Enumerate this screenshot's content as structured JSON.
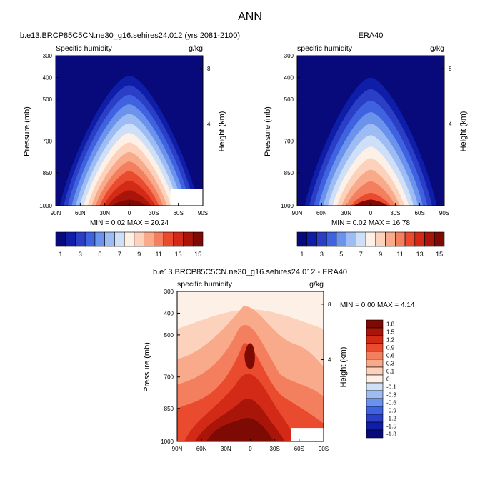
{
  "page_title": "ANN",
  "colors": {
    "sequential": [
      "#080a7c",
      "#0f1ea8",
      "#2a3ec6",
      "#3e62e0",
      "#6c93ec",
      "#9ebcf4",
      "#cedff8",
      "#fdf0e6",
      "#fcd2bc",
      "#f8aa8b",
      "#f47f5f",
      "#ea4a2e",
      "#d32a18",
      "#a91508",
      "#7d0a03"
    ],
    "diverging": [
      "#080a7c",
      "#0f1ea8",
      "#2a3ec6",
      "#3e62e0",
      "#6c93ec",
      "#9ebcf4",
      "#cedff8",
      "#fdf0e6",
      "#fcd2bc",
      "#f8aa8b",
      "#f47f5f",
      "#ea4a2e",
      "#d32a18",
      "#a91508",
      "#7d0a03"
    ]
  },
  "chart_data": [
    {
      "type": "heatmap",
      "title": "b.e13.BRCP85C5CN.ne30_g16.sehires24.012 (yrs 2081-2100)",
      "left_label": "Specific humidity",
      "right_label": "g/kg",
      "ylabel": "Pressure (mb)",
      "y2label": "Height (km)",
      "x_ticks": [
        "90N",
        "60N",
        "30N",
        "0",
        "30S",
        "60S",
        "90S"
      ],
      "y_ticks": [
        "300",
        "400",
        "500",
        "700",
        "850",
        "1000"
      ],
      "y2_ticks": [
        "8",
        "4"
      ],
      "stats": "MIN =  0.02  MAX =  20.24",
      "colorbar_labels": [
        "1",
        "3",
        "5",
        "7",
        "9",
        "11",
        "13",
        "15"
      ],
      "peak_value": 20.24,
      "peak_latitude": 0
    },
    {
      "type": "heatmap",
      "title": "ERA40",
      "left_label": "specific humidity",
      "right_label": "g/kg",
      "ylabel": "Pressure (mb)",
      "y2label": "Height (km)",
      "x_ticks": [
        "90N",
        "60N",
        "30N",
        "0",
        "30S",
        "60S",
        "90S"
      ],
      "y_ticks": [
        "300",
        "400",
        "500",
        "700",
        "850",
        "1000"
      ],
      "y2_ticks": [
        "8",
        "4"
      ],
      "stats": "MIN =  0.02  MAX =  16.78",
      "colorbar_labels": [
        "1",
        "3",
        "5",
        "7",
        "9",
        "11",
        "13",
        "15"
      ],
      "peak_value": 16.78,
      "peak_latitude": 0
    },
    {
      "type": "heatmap",
      "title": "b.e13.BRCP85C5CN.ne30_g16.sehires24.012 - ERA40",
      "left_label": "specific humidity",
      "right_label": "g/kg",
      "ylabel": "Pressure (mb)",
      "y2label": "Height (km)",
      "x_ticks": [
        "90N",
        "60N",
        "30N",
        "0",
        "30S",
        "60S",
        "90S"
      ],
      "y_ticks": [
        "300",
        "400",
        "500",
        "700",
        "850",
        "1000"
      ],
      "y2_ticks": [
        "8",
        "4"
      ],
      "stats": "MIN =  0.00  MAX =  4.14",
      "colorbar_labels": [
        "1.8",
        "1.5",
        "1.2",
        "0.9",
        "0.6",
        "0.3",
        "0.1",
        "0",
        "-0.1",
        "-0.3",
        "-0.6",
        "-0.9",
        "-1.2",
        "-1.5",
        "-1.8"
      ]
    }
  ]
}
